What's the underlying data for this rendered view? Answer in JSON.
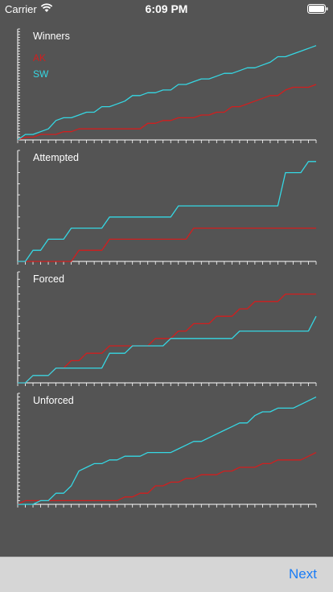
{
  "status_bar": {
    "carrier": "Carrier",
    "time": "6:09 PM"
  },
  "icons": {
    "wifi": "wifi-icon",
    "battery": "battery-icon"
  },
  "colors": {
    "ak": "#d21e1e",
    "sw": "#35d7e3",
    "background": "#545454",
    "axis": "#ffffff"
  },
  "chart_data": [
    {
      "type": "line",
      "title": "Winners",
      "legend": [
        "AK",
        "SW"
      ],
      "x": [
        1,
        2,
        3,
        4,
        5,
        6,
        7,
        8,
        9,
        10,
        11,
        12,
        13,
        14,
        15,
        16,
        17,
        18,
        19,
        20,
        21,
        22,
        23,
        24,
        25,
        26,
        27,
        28,
        29,
        30,
        31,
        32,
        33,
        34,
        35,
        36,
        37,
        38,
        39,
        40
      ],
      "series": [
        {
          "name": "AK",
          "values": [
            0,
            1,
            1,
            2,
            2,
            2,
            3,
            3,
            4,
            4,
            4,
            4,
            4,
            4,
            4,
            4,
            4,
            6,
            6,
            7,
            7,
            8,
            8,
            8,
            9,
            9,
            10,
            10,
            12,
            12,
            13,
            14,
            15,
            16,
            16,
            18,
            19,
            19,
            19,
            20
          ]
        },
        {
          "name": "SW",
          "values": [
            0,
            2,
            2,
            3,
            4,
            7,
            8,
            8,
            9,
            10,
            10,
            12,
            12,
            13,
            14,
            16,
            16,
            17,
            17,
            18,
            18,
            20,
            20,
            21,
            22,
            22,
            23,
            24,
            24,
            25,
            26,
            26,
            27,
            28,
            30,
            30,
            31,
            32,
            33,
            34
          ]
        }
      ],
      "ylim": [
        0,
        40
      ]
    },
    {
      "type": "line",
      "title": "Attempted",
      "x": [
        1,
        2,
        3,
        4,
        5,
        6,
        7,
        8,
        9,
        10,
        11,
        12,
        13,
        14,
        15,
        16,
        17,
        18,
        19,
        20,
        21,
        22,
        23,
        24,
        25,
        26,
        27,
        28,
        29,
        30,
        31,
        32,
        33,
        34,
        35,
        36,
        37,
        38,
        39,
        40
      ],
      "series": [
        {
          "name": "AK",
          "values": [
            0,
            0,
            0,
            0,
            0,
            0,
            0,
            0,
            1,
            1,
            1,
            1,
            2,
            2,
            2,
            2,
            2,
            2,
            2,
            2,
            2,
            2,
            2,
            3,
            3,
            3,
            3,
            3,
            3,
            3,
            3,
            3,
            3,
            3,
            3,
            3,
            3,
            3,
            3,
            3
          ]
        },
        {
          "name": "SW",
          "values": [
            0,
            0,
            1,
            1,
            2,
            2,
            2,
            3,
            3,
            3,
            3,
            3,
            4,
            4,
            4,
            4,
            4,
            4,
            4,
            4,
            4,
            5,
            5,
            5,
            5,
            5,
            5,
            5,
            5,
            5,
            5,
            5,
            5,
            5,
            5,
            8,
            8,
            8,
            9,
            9
          ]
        }
      ],
      "ylim": [
        0,
        10
      ]
    },
    {
      "type": "line",
      "title": "Forced",
      "x": [
        1,
        2,
        3,
        4,
        5,
        6,
        7,
        8,
        9,
        10,
        11,
        12,
        13,
        14,
        15,
        16,
        17,
        18,
        19,
        20,
        21,
        22,
        23,
        24,
        25,
        26,
        27,
        28,
        29,
        30,
        31,
        32,
        33,
        34,
        35,
        36,
        37,
        38,
        39,
        40
      ],
      "series": [
        {
          "name": "AK",
          "values": [
            0,
            0,
            1,
            1,
            1,
            2,
            2,
            3,
            3,
            4,
            4,
            4,
            5,
            5,
            5,
            5,
            5,
            5,
            6,
            6,
            6,
            7,
            7,
            8,
            8,
            8,
            9,
            9,
            9,
            10,
            10,
            11,
            11,
            11,
            11,
            12,
            12,
            12,
            12,
            12
          ]
        },
        {
          "name": "SW",
          "values": [
            0,
            0,
            1,
            1,
            1,
            2,
            2,
            2,
            2,
            2,
            2,
            2,
            4,
            4,
            4,
            5,
            5,
            5,
            5,
            5,
            6,
            6,
            6,
            6,
            6,
            6,
            6,
            6,
            6,
            7,
            7,
            7,
            7,
            7,
            7,
            7,
            7,
            7,
            7,
            9
          ]
        }
      ],
      "ylim": [
        0,
        15
      ]
    },
    {
      "type": "line",
      "title": "Unforced",
      "x": [
        1,
        2,
        3,
        4,
        5,
        6,
        7,
        8,
        9,
        10,
        11,
        12,
        13,
        14,
        15,
        16,
        17,
        18,
        19,
        20,
        21,
        22,
        23,
        24,
        25,
        26,
        27,
        28,
        29,
        30,
        31,
        32,
        33,
        34,
        35,
        36,
        37,
        38,
        39,
        40
      ],
      "series": [
        {
          "name": "AK",
          "values": [
            0,
            1,
            1,
            1,
            1,
            1,
            1,
            1,
            1,
            1,
            1,
            1,
            1,
            1,
            2,
            2,
            3,
            3,
            5,
            5,
            6,
            6,
            7,
            7,
            8,
            8,
            8,
            9,
            9,
            10,
            10,
            10,
            11,
            11,
            12,
            12,
            12,
            12,
            13,
            14
          ]
        },
        {
          "name": "SW",
          "values": [
            0,
            0,
            0,
            1,
            1,
            3,
            3,
            5,
            9,
            10,
            11,
            11,
            12,
            12,
            13,
            13,
            13,
            14,
            14,
            14,
            14,
            15,
            16,
            17,
            17,
            18,
            19,
            20,
            21,
            22,
            22,
            24,
            25,
            25,
            26,
            26,
            26,
            27,
            28,
            29
          ]
        }
      ],
      "ylim": [
        0,
        30
      ]
    }
  ],
  "toolbar": {
    "next_label": "Next"
  }
}
